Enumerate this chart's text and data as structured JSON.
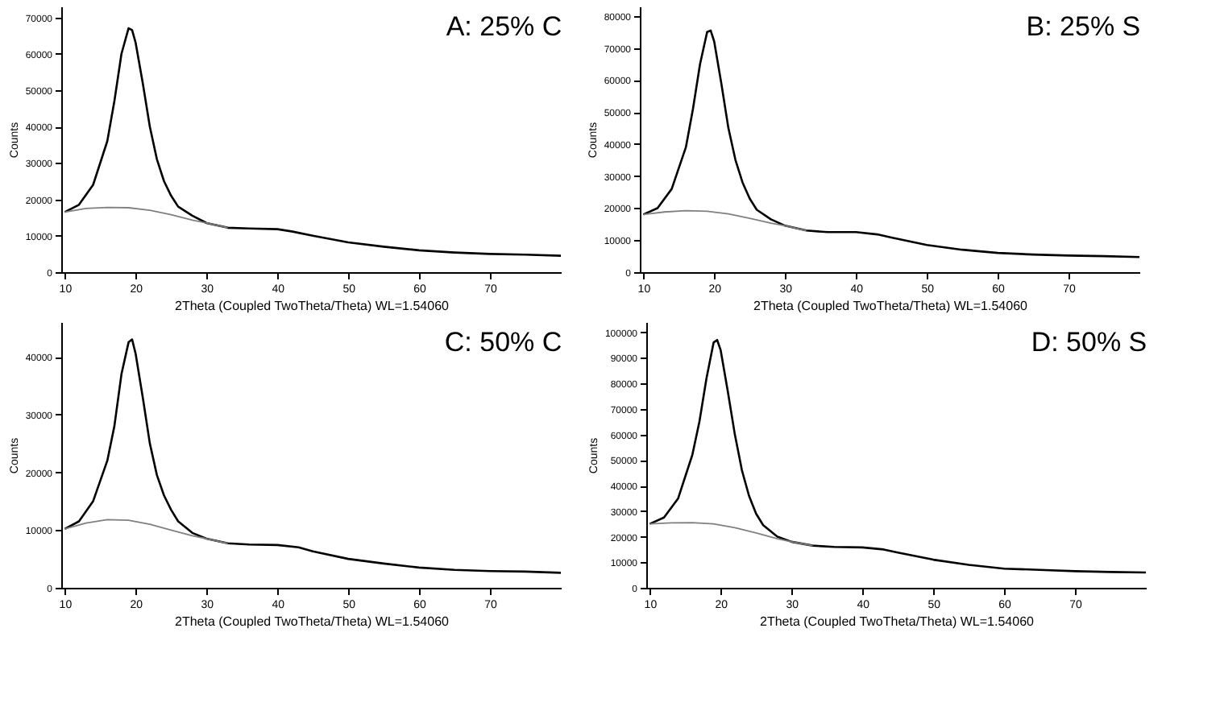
{
  "chart_data": [
    {
      "type": "line",
      "title": "A: 25% C",
      "xlabel": "2Theta (Coupled TwoTheta/Theta) WL=1.54060",
      "ylabel": "Counts",
      "xlim": [
        9.5,
        80
      ],
      "xticks": [
        10,
        20,
        30,
        40,
        50,
        60,
        70
      ],
      "ylim": [
        0,
        73000
      ],
      "yticks": [
        0,
        10000,
        20000,
        30000,
        40000,
        50000,
        60000,
        70000
      ],
      "grid": false,
      "marker": "none",
      "line_style": "solid",
      "series": [
        {
          "color": "#000000",
          "x": [
            10,
            12,
            14,
            16,
            17,
            18,
            19,
            19.5,
            20,
            21,
            22,
            23,
            24,
            25,
            26,
            28,
            30,
            33,
            36,
            40,
            42,
            45,
            50,
            55,
            60,
            65,
            70,
            75,
            80
          ],
          "values": [
            16500,
            18500,
            24000,
            36000,
            47000,
            60000,
            67000,
            66500,
            63000,
            52000,
            40000,
            31000,
            25000,
            21000,
            18000,
            15500,
            13500,
            12200,
            12000,
            11800,
            11200,
            10000,
            8200,
            7000,
            6000,
            5400,
            5000,
            4800,
            4500
          ]
        },
        {
          "color": "#808080",
          "x": [
            10,
            13,
            16,
            19,
            22,
            25,
            28,
            30,
            33
          ],
          "values": [
            16500,
            17500,
            17800,
            17700,
            17000,
            15800,
            14300,
            13500,
            12200
          ]
        }
      ]
    },
    {
      "type": "line",
      "title": "B: 25% S",
      "xlabel": "2Theta (Coupled TwoTheta/Theta) WL=1.54060",
      "ylabel": "Counts",
      "xlim": [
        9.5,
        80
      ],
      "xticks": [
        10,
        20,
        30,
        40,
        50,
        60,
        70
      ],
      "ylim": [
        0,
        83000
      ],
      "yticks": [
        0,
        10000,
        20000,
        30000,
        40000,
        50000,
        60000,
        70000,
        80000
      ],
      "grid": false,
      "marker": "none",
      "line_style": "solid",
      "series": [
        {
          "color": "#000000",
          "x": [
            10,
            12,
            14,
            16,
            17,
            18,
            19,
            19.5,
            20,
            21,
            22,
            23,
            24,
            25,
            26,
            28,
            30,
            33,
            36,
            40,
            43,
            45,
            50,
            55,
            60,
            65,
            70,
            75,
            80
          ],
          "values": [
            18000,
            20000,
            26000,
            39000,
            51000,
            65000,
            75000,
            75500,
            72000,
            59000,
            45000,
            35000,
            28000,
            23000,
            19500,
            16500,
            14500,
            13000,
            12500,
            12500,
            11800,
            10800,
            8500,
            7000,
            6000,
            5500,
            5200,
            5000,
            4700
          ]
        },
        {
          "color": "#808080",
          "x": [
            10,
            13,
            16,
            19,
            22,
            25,
            28,
            30,
            33
          ],
          "values": [
            18000,
            18800,
            19200,
            19000,
            18200,
            16800,
            15300,
            14500,
            13000
          ]
        }
      ]
    },
    {
      "type": "line",
      "title": "C: 50% C",
      "xlabel": "2Theta (Coupled TwoTheta/Theta) WL=1.54060",
      "ylabel": "Counts",
      "xlim": [
        9.5,
        80
      ],
      "xticks": [
        10,
        20,
        30,
        40,
        50,
        60,
        70
      ],
      "ylim": [
        0,
        46000
      ],
      "yticks": [
        0,
        10000,
        20000,
        30000,
        40000
      ],
      "grid": false,
      "marker": "none",
      "line_style": "solid",
      "series": [
        {
          "color": "#000000",
          "x": [
            10,
            12,
            14,
            16,
            17,
            18,
            19,
            19.5,
            20,
            21,
            22,
            23,
            24,
            25,
            26,
            28,
            30,
            33,
            36,
            40,
            43,
            45,
            50,
            55,
            60,
            65,
            70,
            75,
            80
          ],
          "values": [
            10200,
            11500,
            15000,
            22000,
            28000,
            37000,
            42500,
            43000,
            40500,
            33000,
            25000,
            19500,
            16000,
            13500,
            11500,
            9500,
            8500,
            7700,
            7500,
            7400,
            7000,
            6300,
            5000,
            4200,
            3500,
            3100,
            2900,
            2800,
            2600
          ]
        },
        {
          "color": "#808080",
          "x": [
            10,
            13,
            16,
            19,
            22,
            25,
            28,
            30,
            33
          ],
          "values": [
            10200,
            11200,
            11800,
            11700,
            11000,
            10000,
            9000,
            8500,
            7700
          ]
        }
      ]
    },
    {
      "type": "line",
      "title": "D: 50% S",
      "xlabel": "2Theta (Coupled TwoTheta/Theta) WL=1.54060",
      "ylabel": "Counts",
      "xlim": [
        9.5,
        80
      ],
      "xticks": [
        10,
        20,
        30,
        40,
        50,
        60,
        70
      ],
      "ylim": [
        0,
        104000
      ],
      "yticks": [
        0,
        10000,
        20000,
        30000,
        40000,
        50000,
        60000,
        70000,
        80000,
        90000,
        100000
      ],
      "grid": false,
      "marker": "none",
      "line_style": "solid",
      "series": [
        {
          "color": "#000000",
          "x": [
            10,
            12,
            14,
            16,
            17,
            18,
            19,
            19.5,
            20,
            21,
            22,
            23,
            24,
            25,
            26,
            28,
            30,
            33,
            36,
            40,
            43,
            45,
            50,
            55,
            60,
            65,
            70,
            75,
            80
          ],
          "values": [
            25000,
            27500,
            35000,
            52000,
            65000,
            82000,
            96000,
            97000,
            93000,
            77000,
            60000,
            46000,
            36000,
            29000,
            24500,
            20000,
            18000,
            16500,
            16000,
            15800,
            15000,
            13800,
            11000,
            9000,
            7500,
            7000,
            6500,
            6200,
            6000
          ]
        },
        {
          "color": "#808080",
          "x": [
            10,
            13,
            16,
            19,
            22,
            25,
            28,
            30,
            33
          ],
          "values": [
            25000,
            25400,
            25500,
            25000,
            23500,
            21500,
            19200,
            18000,
            16500
          ]
        }
      ]
    }
  ]
}
